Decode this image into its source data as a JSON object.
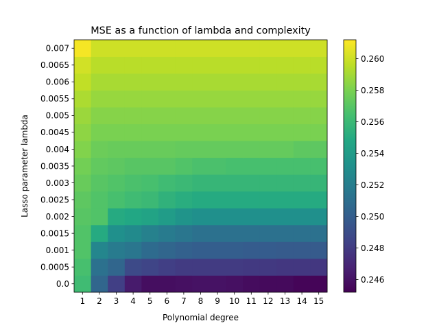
{
  "chart_data": {
    "type": "heatmap",
    "title": "MSE as a function of lambda and complexity",
    "xlabel": "Polynomial degree",
    "ylabel": "Lasso parameter lambda",
    "x": [
      "1",
      "2",
      "3",
      "4",
      "5",
      "6",
      "7",
      "8",
      "9",
      "10",
      "11",
      "12",
      "13",
      "14",
      "15"
    ],
    "y": [
      "0.0",
      "0.0005",
      "0.001",
      "0.0015",
      "0.002",
      "0.0025",
      "0.003",
      "0.0035",
      "0.004",
      "0.0045",
      "0.005",
      "0.0055",
      "0.006",
      "0.0065",
      "0.007"
    ],
    "colormap": "viridis",
    "vmin": 0.2452,
    "vmax": 0.2612,
    "colorbar_ticks": [
      "0.246",
      "0.248",
      "0.250",
      "0.252",
      "0.254",
      "0.256",
      "0.258",
      "0.260"
    ],
    "values": [
      [
        0.2562,
        0.2505,
        0.2482,
        0.2464,
        0.2458,
        0.2458,
        0.2459,
        0.246,
        0.246,
        0.2459,
        0.2457,
        0.2456,
        0.2456,
        0.2454,
        0.2454
      ],
      [
        0.2565,
        0.2512,
        0.2505,
        0.2488,
        0.2485,
        0.2482,
        0.248,
        0.248,
        0.248,
        0.248,
        0.2479,
        0.2479,
        0.2478,
        0.2478,
        0.2478
      ],
      [
        0.2568,
        0.2525,
        0.2518,
        0.2515,
        0.2508,
        0.2505,
        0.2502,
        0.25,
        0.25,
        0.25,
        0.2499,
        0.2499,
        0.2498,
        0.2498,
        0.2498
      ],
      [
        0.2568,
        0.255,
        0.2532,
        0.2528,
        0.2522,
        0.2518,
        0.2515,
        0.2512,
        0.2512,
        0.2512,
        0.2512,
        0.2512,
        0.2512,
        0.2512,
        0.2512
      ],
      [
        0.257,
        0.2568,
        0.255,
        0.2548,
        0.2545,
        0.254,
        0.2535,
        0.2532,
        0.2532,
        0.2532,
        0.2532,
        0.2532,
        0.2532,
        0.2532,
        0.2532
      ],
      [
        0.2572,
        0.2568,
        0.2565,
        0.2562,
        0.256,
        0.2555,
        0.2552,
        0.255,
        0.255,
        0.255,
        0.255,
        0.255,
        0.255,
        0.255,
        0.255
      ],
      [
        0.2575,
        0.257,
        0.2568,
        0.2566,
        0.2565,
        0.2562,
        0.256,
        0.2558,
        0.2558,
        0.2558,
        0.2558,
        0.2558,
        0.2558,
        0.2558,
        0.2558
      ],
      [
        0.2578,
        0.2573,
        0.2572,
        0.257,
        0.257,
        0.257,
        0.2568,
        0.2566,
        0.2566,
        0.2565,
        0.2565,
        0.2565,
        0.2565,
        0.2565,
        0.2565
      ],
      [
        0.2582,
        0.2576,
        0.2575,
        0.2575,
        0.2575,
        0.2575,
        0.2574,
        0.2574,
        0.2574,
        0.2574,
        0.2574,
        0.2574,
        0.2574,
        0.2572,
        0.2572
      ],
      [
        0.2585,
        0.258,
        0.258,
        0.258,
        0.258,
        0.258,
        0.258,
        0.258,
        0.258,
        0.258,
        0.258,
        0.258,
        0.258,
        0.258,
        0.258
      ],
      [
        0.2588,
        0.2583,
        0.2583,
        0.2583,
        0.2583,
        0.2583,
        0.2583,
        0.2583,
        0.2583,
        0.2583,
        0.2583,
        0.2583,
        0.2583,
        0.2583,
        0.2583
      ],
      [
        0.2592,
        0.2587,
        0.2587,
        0.2587,
        0.2587,
        0.2587,
        0.2587,
        0.2587,
        0.2587,
        0.2587,
        0.2587,
        0.2587,
        0.2587,
        0.2587,
        0.2587
      ],
      [
        0.2597,
        0.2591,
        0.2591,
        0.2591,
        0.2591,
        0.2591,
        0.2591,
        0.2591,
        0.2591,
        0.2591,
        0.2591,
        0.2591,
        0.2591,
        0.2591,
        0.2591
      ],
      [
        0.2601,
        0.2595,
        0.2595,
        0.2595,
        0.2595,
        0.2595,
        0.2595,
        0.2595,
        0.2595,
        0.2595,
        0.2595,
        0.2595,
        0.2595,
        0.2595,
        0.2595
      ],
      [
        0.261,
        0.26,
        0.26,
        0.26,
        0.26,
        0.26,
        0.26,
        0.26,
        0.26,
        0.26,
        0.26,
        0.26,
        0.26,
        0.26,
        0.26
      ]
    ]
  }
}
